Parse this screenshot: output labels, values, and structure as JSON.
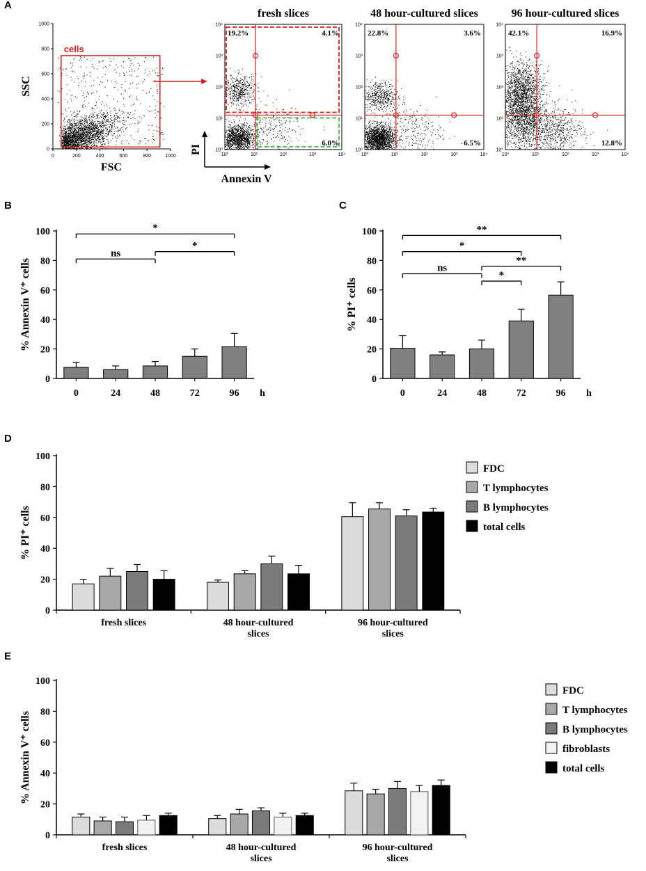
{
  "colors": {
    "gate_red": "#d42020",
    "gate_green": "#22aa22",
    "bar_gray": "#808080",
    "fdc": "#dcdcdc",
    "t_lymph": "#a8a8a8",
    "b_lymph": "#7a7a7a",
    "total": "#000000",
    "fibroblasts": "#f2f2f2"
  },
  "chart_data": [
    {
      "panel": "A",
      "type": "scatter",
      "title": "",
      "xlabel": "FSC",
      "ylabel": "SSC",
      "xlim": [
        0,
        1000
      ],
      "ylim": [
        0,
        1000
      ],
      "x_ticks": [
        0,
        200,
        400,
        600,
        800,
        1000
      ],
      "y_ticks": [
        0,
        200,
        400,
        600,
        800,
        1000
      ],
      "gate_label": "cells",
      "gate": {
        "x": [
          70,
          910
        ],
        "y": [
          15,
          745
        ]
      }
    },
    {
      "panel": "A",
      "type": "scatter",
      "title": "fresh slices",
      "xlabel": "Annexin V",
      "ylabel": "PI",
      "log_ticks": [
        "10⁰",
        "10¹",
        "10²",
        "10³",
        "10⁴"
      ],
      "quadrants": {
        "upper_left": "19.2%",
        "upper_right": "4.1%",
        "lower_right": "6.0%"
      }
    },
    {
      "panel": "A",
      "type": "scatter",
      "title": "48 hour-cultured slices",
      "log_ticks": [
        "10⁰",
        "10¹",
        "10²",
        "10³",
        "10⁴"
      ],
      "quadrants": {
        "upper_left": "22.8%",
        "upper_right": "3.6%",
        "lower_right": "6.5%"
      }
    },
    {
      "panel": "A",
      "type": "scatter",
      "title": "96 hour-cultured slices",
      "log_ticks": [
        "10⁰",
        "10¹",
        "10²",
        "10³",
        "10⁴"
      ],
      "quadrants": {
        "upper_left": "42.1%",
        "upper_right": "16.9%",
        "lower_right": "12.8%"
      }
    },
    {
      "panel": "B",
      "type": "bar",
      "ylabel": "% Annexin V⁺ cells",
      "xunit": "h",
      "categories": [
        "0",
        "24",
        "48",
        "72",
        "96"
      ],
      "values": [
        7.5,
        6,
        8.5,
        15,
        21.5
      ],
      "errors": [
        3.5,
        2.5,
        3,
        5,
        9
      ],
      "ylim": [
        0,
        100
      ],
      "y_ticks": [
        0,
        20,
        40,
        60,
        80,
        100
      ],
      "significance": [
        {
          "from": "0",
          "to": "96",
          "label": "*",
          "level": 98
        },
        {
          "from": "48",
          "to": "96",
          "label": "*",
          "level": 86
        },
        {
          "from": "0",
          "to": "48",
          "label": "ns",
          "level": 81
        }
      ]
    },
    {
      "panel": "C",
      "type": "bar",
      "ylabel": "% PI⁺ cells",
      "xunit": "h",
      "categories": [
        "0",
        "24",
        "48",
        "72",
        "96"
      ],
      "values": [
        20.5,
        16,
        20,
        39,
        56.5
      ],
      "errors": [
        8.5,
        2,
        6,
        8,
        9
      ],
      "ylim": [
        0,
        100
      ],
      "y_ticks": [
        0,
        20,
        40,
        60,
        80,
        100
      ],
      "significance": [
        {
          "from": "0",
          "to": "96",
          "label": "**",
          "level": 97
        },
        {
          "from": "0",
          "to": "72",
          "label": "*",
          "level": 86
        },
        {
          "from": "48",
          "to": "96",
          "label": "**",
          "level": 76
        },
        {
          "from": "0",
          "to": "48",
          "label": "ns",
          "level": 71
        },
        {
          "from": "48",
          "to": "72",
          "label": "*",
          "level": 66
        }
      ]
    },
    {
      "panel": "D",
      "type": "bar",
      "ylabel": "% PI⁺ cells",
      "groups": [
        [
          "fresh slices"
        ],
        [
          "48 hour-cultured",
          "slices"
        ],
        [
          "96 hour-cultured",
          "slices"
        ]
      ],
      "ylim": [
        0,
        100
      ],
      "y_ticks": [
        0,
        20,
        40,
        60,
        80,
        100
      ],
      "series": [
        {
          "name": "FDC",
          "values": [
            17,
            18,
            60.5
          ],
          "errors": [
            3,
            1.5,
            9
          ]
        },
        {
          "name": "T lymphocytes",
          "values": [
            22,
            23.5,
            65.5
          ],
          "errors": [
            5,
            2,
            4
          ]
        },
        {
          "name": "B lymphocytes",
          "values": [
            25,
            30,
            61
          ],
          "errors": [
            4.5,
            5,
            4
          ]
        },
        {
          "name": "total cells",
          "values": [
            20,
            23.5,
            63.5
          ],
          "errors": [
            5.5,
            5.5,
            2.5
          ]
        }
      ]
    },
    {
      "panel": "E",
      "type": "bar",
      "ylabel": "% Annexin V⁺ cells",
      "groups": [
        [
          "fresh slices"
        ],
        [
          "48 hour-cultured",
          "slices"
        ],
        [
          "96 hour-cultured",
          "slices"
        ]
      ],
      "ylim": [
        0,
        100
      ],
      "y_ticks": [
        0,
        20,
        40,
        60,
        80,
        100
      ],
      "series": [
        {
          "name": "FDC",
          "values": [
            11.5,
            10.5,
            28.5
          ],
          "errors": [
            2,
            2,
            5
          ]
        },
        {
          "name": "T lymphocytes",
          "values": [
            9,
            13.5,
            26.5
          ],
          "errors": [
            2.5,
            3,
            3
          ]
        },
        {
          "name": "B lymphocytes",
          "values": [
            8.5,
            15.5,
            30
          ],
          "errors": [
            3,
            2,
            4.5
          ]
        },
        {
          "name": "fibroblasts",
          "values": [
            9.5,
            11.5,
            28
          ],
          "errors": [
            3,
            2.5,
            4
          ]
        },
        {
          "name": "total cells",
          "values": [
            12.5,
            12.5,
            32
          ],
          "errors": [
            1.5,
            1.5,
            3.5
          ]
        }
      ]
    }
  ],
  "panel_letters": [
    "A",
    "B",
    "C",
    "D",
    "E"
  ]
}
